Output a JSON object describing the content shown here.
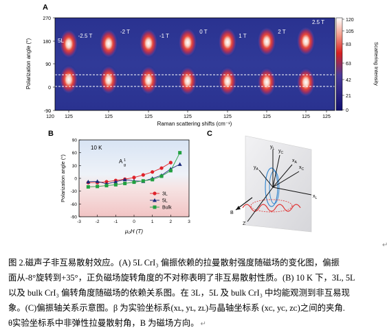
{
  "panelA": {
    "letter": "A",
    "ylabel": "Polarization  angle (°)",
    "yticks": [
      "270",
      "180",
      "90",
      "0",
      "-90"
    ],
    "xlabel": "Raman scattering shifts (cm⁻¹)",
    "xticks": [
      "120",
      "125",
      "125",
      "125",
      "125",
      "125",
      "125",
      "125",
      "125"
    ],
    "sample_label": "5L",
    "field_labels": [
      "-2.5 T",
      "-2 T",
      "-1 T",
      "0 T",
      "1 T",
      "2 T",
      "2.5 T"
    ],
    "colorbar": {
      "label": "Scattering Intensity",
      "ticks": [
        "120",
        "105",
        "83",
        "63",
        "42",
        "21",
        "0"
      ],
      "colors": [
        "#ffffff",
        "#f07a6a",
        "#d02020",
        "#202080",
        "#101070"
      ]
    }
  },
  "panelB": {
    "letter": "B",
    "note": "10 K",
    "mode_label": "A",
    "mode_sup": "1",
    "mode_sub": "g"
  },
  "panelC": {
    "letter": "C",
    "axis_labels": [
      "yL",
      "yC",
      "yA",
      "xA",
      "xC",
      "xL",
      "B",
      "Z"
    ]
  },
  "chart_data": {
    "type": "line",
    "title": "",
    "xlabel": "μ₀H (T)",
    "ylabel": "Polarization  angle (°)",
    "xlim": [
      -3,
      3
    ],
    "ylim": [
      -90,
      90
    ],
    "xticks": [
      "-3",
      "-2",
      "-1",
      "0",
      "1",
      "2",
      "3"
    ],
    "yticks": [
      "90",
      "60",
      "30",
      "0",
      "-30",
      "-60",
      "-90"
    ],
    "legend_position": "bottom-right",
    "grid": false,
    "series": [
      {
        "name": "3L",
        "color": "#e0222a",
        "marker": "circle",
        "x": [
          -2.5,
          -2,
          -1.5,
          -1,
          -0.5,
          0,
          0.5,
          1,
          1.5,
          2
        ],
        "y": [
          -10,
          -10,
          -8,
          -5,
          -2,
          2,
          8,
          15,
          24,
          37
        ]
      },
      {
        "name": "5L",
        "color": "#1b2a7a",
        "marker": "triangle",
        "x": [
          -2.5,
          -2,
          -1.5,
          -1,
          -0.5,
          0,
          0.5,
          1,
          1.5,
          2,
          2.5
        ],
        "y": [
          -8,
          -7,
          -13,
          -8,
          -3,
          -6,
          -7,
          0,
          7,
          22,
          33
        ]
      },
      {
        "name": "Bulk",
        "color": "#22a040",
        "marker": "square",
        "x": [
          -2.5,
          -2,
          -1.5,
          -1,
          -0.5,
          0,
          0.5,
          1,
          1.5,
          2,
          2.5
        ],
        "y": [
          -20,
          -19,
          -17,
          -15,
          -12,
          -9,
          -6,
          -3,
          5,
          18,
          60
        ]
      }
    ]
  },
  "caption": {
    "line1": "图 2.磁声子非互易散射效应。(A) 5L CrI₃ 偏振依赖的拉曼散射强度随磁场的变化图，偏振",
    "line2": "面从-8°旋转到+35°，正负磁场旋转角度的不对称表明了非互易散射性质。(B) 10 K 下，3L, 5L",
    "line3": "以及 bulk CrI₃ 偏转角度随磁场的依赖关系图。在 3L，5L 及 bulk CrI₃ 中均能观测到非互易现",
    "line4": "象。(C)偏振轴关系示意图。β 为实验坐标系(xʟ, yʟ, zʟ)与晶轴坐标系 (xᴄ, yᴄ, zᴄ)之间的夹角.",
    "line5": "θ实验坐标系中非弹性拉曼散射角，B 为磁场方向。"
  }
}
